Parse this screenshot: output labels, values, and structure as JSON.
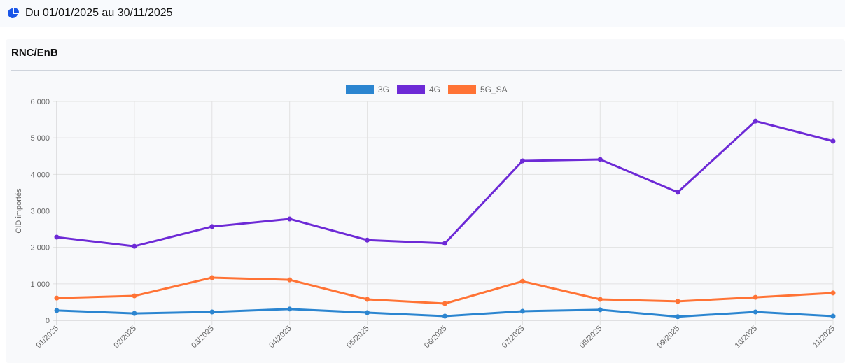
{
  "header": {
    "date_range": "Du 01/01/2025 au 30/11/2025",
    "icon": "pie-chart-icon"
  },
  "card": {
    "title": "RNC/EnB"
  },
  "chart_data": {
    "type": "line",
    "title": "RNC/EnB",
    "xlabel": "",
    "ylabel": "CID importés",
    "ylim": [
      0,
      6000
    ],
    "yticks": [
      0,
      1000,
      2000,
      3000,
      4000,
      5000,
      6000
    ],
    "ytick_labels": [
      "0",
      "1 000",
      "2 000",
      "3 000",
      "4 000",
      "5 000",
      "6 000"
    ],
    "grid": true,
    "legend": "top-center",
    "categories": [
      "01/2025",
      "02/2025",
      "03/2025",
      "04/2025",
      "05/2025",
      "06/2025",
      "07/2025",
      "08/2025",
      "09/2025",
      "10/2025",
      "11/2025"
    ],
    "series": [
      {
        "name": "3G",
        "color": "#2b85d0",
        "values": [
          270,
          190,
          230,
          310,
          210,
          115,
          250,
          290,
          100,
          230,
          115
        ]
      },
      {
        "name": "4G",
        "color": "#6d2ad6",
        "values": [
          2280,
          2030,
          2570,
          2780,
          2200,
          2110,
          4370,
          4410,
          3510,
          5460,
          4910
        ]
      },
      {
        "name": "5G_SA",
        "color": "#ff7335",
        "values": [
          610,
          670,
          1170,
          1110,
          575,
          460,
          1070,
          575,
          520,
          630,
          750
        ]
      }
    ]
  }
}
